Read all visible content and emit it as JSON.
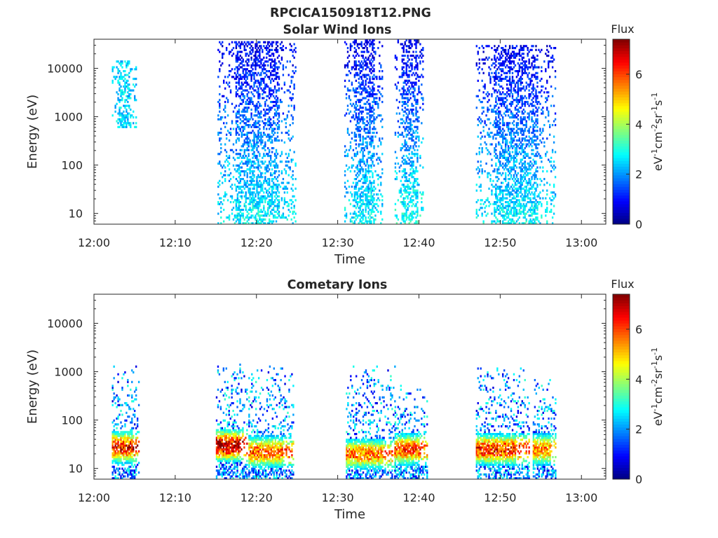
{
  "figure_title": "RPCICA150918T12.PNG",
  "chart_data": [
    {
      "type": "heatmap",
      "title": "Solar Wind Ions",
      "xlabel": "Time",
      "ylabel": "Energy (eV)",
      "x_tick_labels": [
        "12:00",
        "12:10",
        "12:20",
        "12:30",
        "12:40",
        "12:50",
        "13:00"
      ],
      "x_ticks_min": [
        0,
        10,
        20,
        30,
        40,
        50,
        60
      ],
      "xlim_min": [
        0,
        63
      ],
      "y_scale": "log",
      "ylim": [
        6,
        40000
      ],
      "y_ticks": [
        10,
        100,
        1000,
        10000
      ],
      "y_tick_labels": [
        "10",
        "100",
        "1000",
        "10000"
      ],
      "colorbar": {
        "title": "Flux",
        "units": "eV-1cm-2sr-1s-1",
        "range": [
          0,
          7.4
        ],
        "ticks": [
          0,
          2,
          4,
          6
        ],
        "tick_labels": [
          "0",
          "2",
          "4",
          "6"
        ],
        "colormap": "jet"
      },
      "bursts": [
        {
          "t_start": 2.2,
          "t_end": 5.2,
          "e_min": 600,
          "e_max": 14000,
          "flux_low": 2.5,
          "flux_high": 2.5
        },
        {
          "t_start": 15.2,
          "t_end": 24.8,
          "e_min": 6,
          "e_max": 35000,
          "flux_low": 2.8,
          "flux_high": 0.8
        },
        {
          "t_start": 30.8,
          "t_end": 35.5,
          "e_min": 6,
          "e_max": 40000,
          "flux_low": 2.8,
          "flux_high": 0.8
        },
        {
          "t_start": 37.0,
          "t_end": 40.5,
          "e_min": 6,
          "e_max": 40000,
          "flux_low": 3.0,
          "flux_high": 0.8
        },
        {
          "t_start": 47.0,
          "t_end": 56.8,
          "e_min": 6,
          "e_max": 30000,
          "flux_low": 2.8,
          "flux_high": 0.8
        }
      ]
    },
    {
      "type": "heatmap",
      "title": "Cometary Ions",
      "xlabel": "Time",
      "ylabel": "Energy (eV)",
      "x_tick_labels": [
        "12:00",
        "12:10",
        "12:20",
        "12:30",
        "12:40",
        "12:50",
        "13:00"
      ],
      "x_ticks_min": [
        0,
        10,
        20,
        30,
        40,
        50,
        60
      ],
      "xlim_min": [
        0,
        63
      ],
      "y_scale": "log",
      "ylim": [
        6,
        40000
      ],
      "y_ticks": [
        10,
        100,
        1000,
        10000
      ],
      "y_tick_labels": [
        "10",
        "100",
        "1000",
        "10000"
      ],
      "colorbar": {
        "title": "Flux",
        "units": "eV-1cm-2sr-1s-1",
        "range": [
          0,
          7.4
        ],
        "ticks": [
          0,
          2,
          4,
          6
        ],
        "tick_labels": [
          "0",
          "2",
          "4",
          "6"
        ],
        "colormap": "jet"
      },
      "bursts": [
        {
          "t_start": 2.2,
          "t_end": 5.5,
          "e_min": 6,
          "e_max": 1300,
          "peak_energy": 28,
          "peak_flux": 6.5
        },
        {
          "t_start": 15.0,
          "t_end": 18.8,
          "e_min": 6,
          "e_max": 1500,
          "peak_energy": 30,
          "peak_flux": 7.2
        },
        {
          "t_start": 19.0,
          "t_end": 24.5,
          "e_min": 6,
          "e_max": 1300,
          "peak_energy": 22,
          "peak_flux": 5.8
        },
        {
          "t_start": 31.0,
          "t_end": 37.0,
          "e_min": 6,
          "e_max": 1400,
          "peak_energy": 20,
          "peak_flux": 5.6
        },
        {
          "t_start": 37.0,
          "t_end": 41.0,
          "e_min": 6,
          "e_max": 600,
          "peak_energy": 25,
          "peak_flux": 6.0
        },
        {
          "t_start": 47.0,
          "t_end": 53.5,
          "e_min": 6,
          "e_max": 1200,
          "peak_energy": 25,
          "peak_flux": 6.2
        },
        {
          "t_start": 54.0,
          "t_end": 56.8,
          "e_min": 6,
          "e_max": 700,
          "peak_energy": 25,
          "peak_flux": 5.5
        }
      ]
    }
  ]
}
